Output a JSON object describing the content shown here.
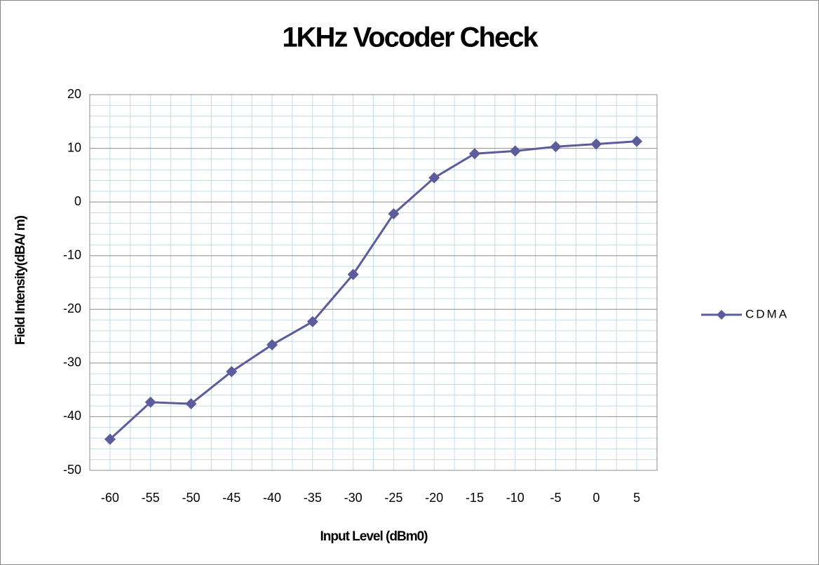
{
  "chart_data": {
    "type": "line",
    "title": "1KHz Vocoder Check",
    "x_label": "Input Level (dBm0)",
    "y_label": "Field Intensity(dBA/ m)",
    "categories": [
      -60,
      -55,
      -50,
      -45,
      -40,
      -35,
      -30,
      -25,
      -20,
      -15,
      -10,
      -5,
      0,
      5
    ],
    "series": [
      {
        "name": "CDMA",
        "color": "#5c5c9c",
        "values": [
          -44.2,
          -37.3,
          -37.6,
          -31.6,
          -26.6,
          -22.3,
          -13.5,
          -2.2,
          4.5,
          9.0,
          9.5,
          10.3,
          10.8,
          11.3
        ]
      }
    ],
    "ylim": [
      -50,
      20
    ],
    "yticks": [
      -50,
      -40,
      -30,
      -20,
      -10,
      0,
      10,
      20
    ],
    "grid": true,
    "legend": "right"
  }
}
